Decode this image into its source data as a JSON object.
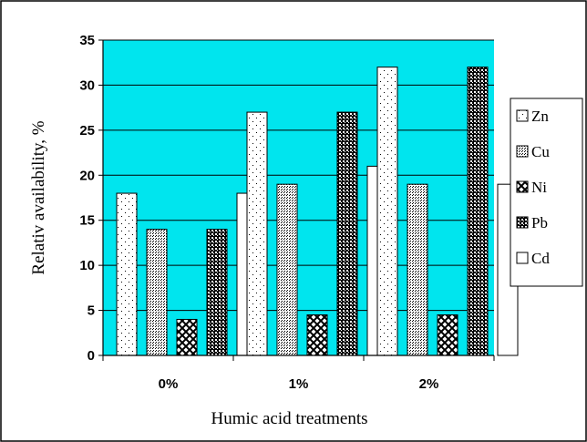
{
  "chart_data": {
    "type": "bar",
    "categories": [
      "0%",
      "1%",
      "2%"
    ],
    "series": [
      {
        "name": "Zn",
        "values": [
          18,
          27,
          32
        ]
      },
      {
        "name": "Cu",
        "values": [
          14,
          19,
          19
        ]
      },
      {
        "name": "Ni",
        "values": [
          4,
          4.5,
          4.5
        ]
      },
      {
        "name": "Pb",
        "values": [
          14,
          27,
          32
        ]
      },
      {
        "name": "Cd",
        "values": [
          18,
          21,
          19
        ]
      }
    ],
    "xlabel": "Humic acid treatments",
    "ylabel": "Relativ availability, %",
    "ylim": [
      0,
      35
    ],
    "yticks": [
      "0",
      "5",
      "10",
      "15",
      "20",
      "25",
      "30",
      "35"
    ],
    "grid": true,
    "legend_position": "right",
    "colors": {
      "plot_background": "#00e5ee",
      "gridline": "#000000",
      "bar_fill": "#ffffff",
      "bar_pattern": "#000000"
    }
  }
}
